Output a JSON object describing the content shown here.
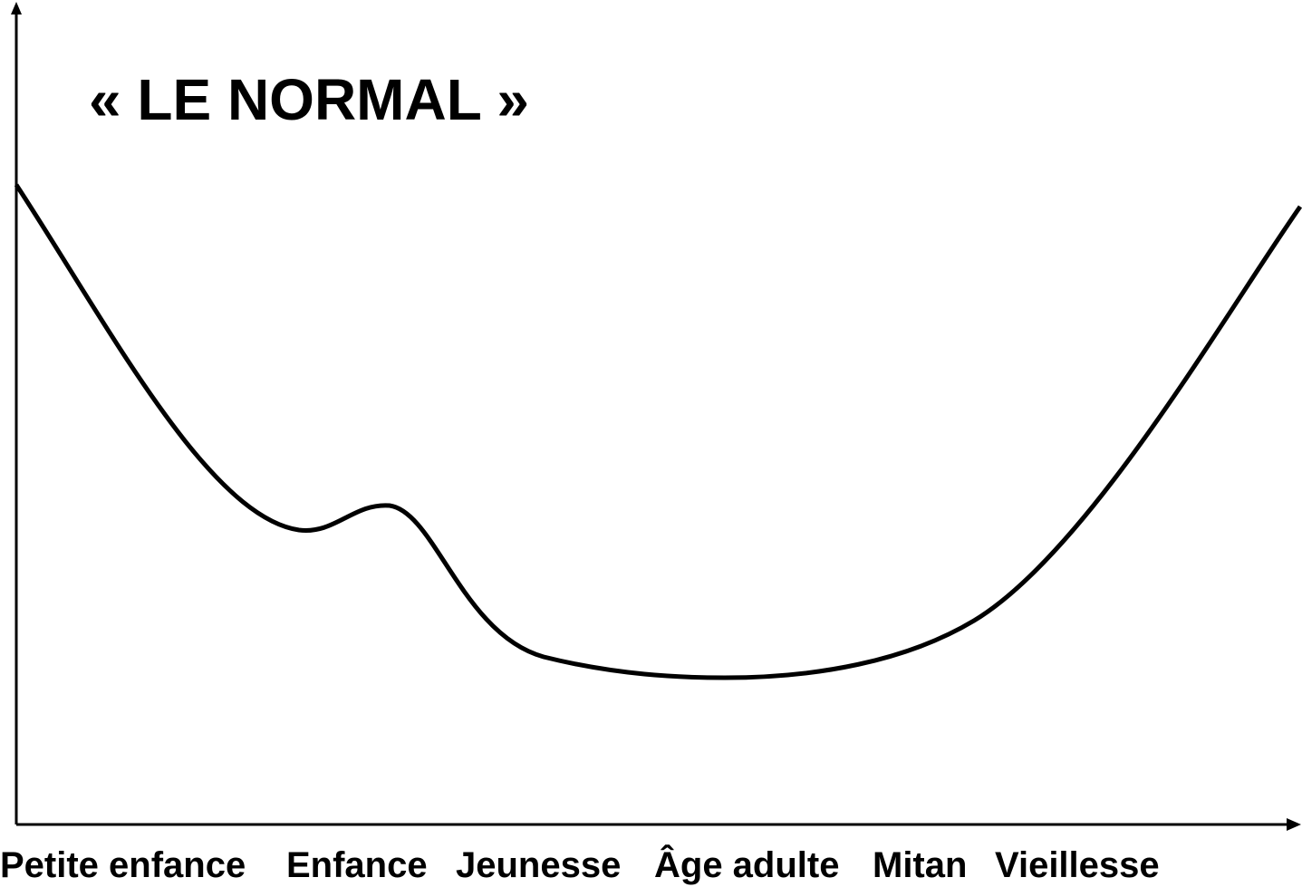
{
  "title": "« LE NORMAL »",
  "stages": [
    "Petite enfance",
    "Enfance",
    "Jeunesse",
    "Âge adulte",
    "Mitan",
    "Vieillesse"
  ]
}
